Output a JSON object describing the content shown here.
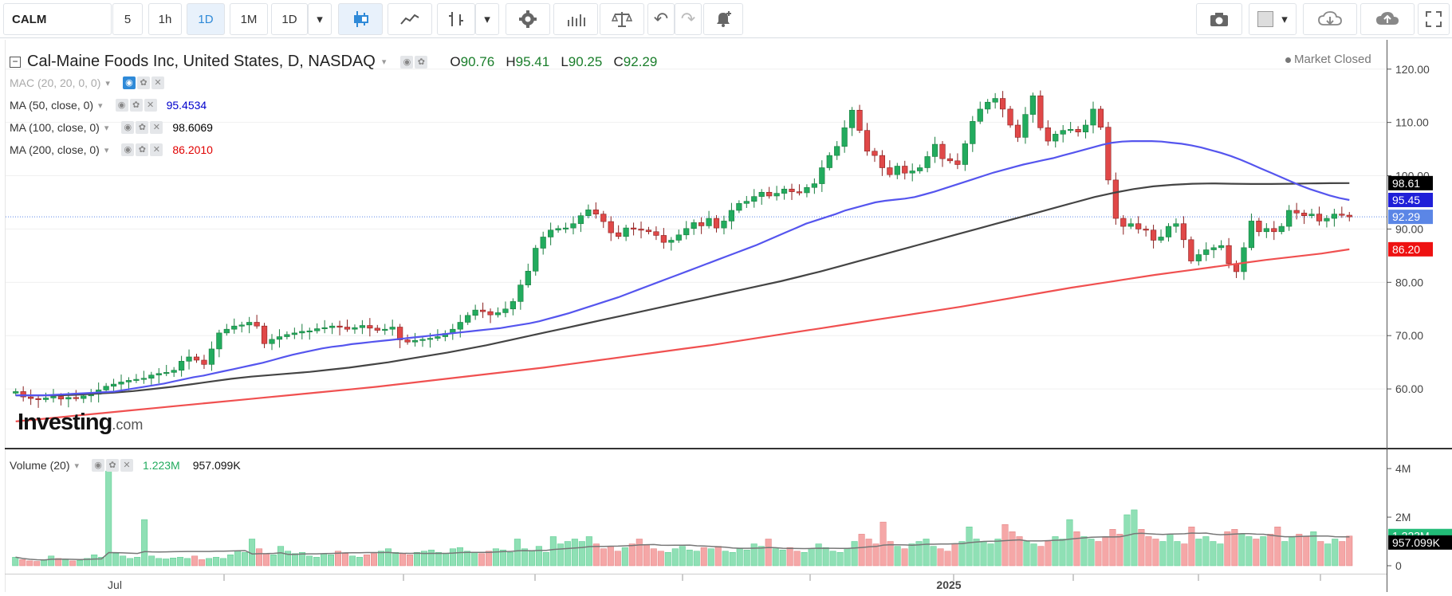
{
  "toolbar": {
    "symbol": "CALM",
    "intervals": [
      "5",
      "1h",
      "1D",
      "1M",
      "1D"
    ],
    "active_interval_index": 2
  },
  "legend": {
    "title": "Cal-Maine Foods Inc, United States, D, NASDAQ",
    "open_label": "O",
    "open": "90.76",
    "high_label": "H",
    "high": "95.41",
    "low_label": "L",
    "low": "90.25",
    "close_label": "C",
    "close": "92.29"
  },
  "indicators": [
    {
      "label": "MAC (20, 20, 0, 0)",
      "value": "",
      "color": "#aaaaaa",
      "muted": true
    },
    {
      "label": "MA (50, close, 0)",
      "value": "95.4534",
      "color": "#0000cc",
      "muted": false
    },
    {
      "label": "MA (100, close, 0)",
      "value": "98.6069",
      "color": "#000000",
      "muted": false
    },
    {
      "label": "MA (200, close, 0)",
      "value": "86.2010",
      "color": "#e00000",
      "muted": false
    }
  ],
  "market_status": "Market Closed",
  "watermark": {
    "brand": "Investing",
    "suffix": ".com"
  },
  "volume": {
    "label": "Volume (20)",
    "value1": "1.223M",
    "value2": "957.099K"
  },
  "price_axis": {
    "ticks": [
      "120.00",
      "110.00",
      "100.00",
      "90.00",
      "80.00",
      "70.00",
      "60.00"
    ],
    "badges": [
      {
        "text": "98.61",
        "bg": "#000000",
        "fg": "#ffffff"
      },
      {
        "text": "95.45",
        "bg": "#1f1fd8",
        "fg": "#ffffff"
      },
      {
        "text": "92.29",
        "bg": "#5b86e6",
        "fg": "#ffffff"
      },
      {
        "text": "86.20",
        "bg": "#ee1111",
        "fg": "#ffffff"
      }
    ]
  },
  "volume_axis": {
    "ticks": [
      "4M",
      "2M",
      "0"
    ],
    "badges": [
      {
        "text": "1.223M",
        "bg": "#22bb77",
        "fg": "#ffffff"
      },
      {
        "text": "957.099K",
        "bg": "#000000",
        "fg": "#ffffff"
      }
    ]
  },
  "time_axis": {
    "labels": [
      "Jul",
      "2025"
    ]
  },
  "colors": {
    "up": "#22ab5e",
    "down": "#e04848",
    "ma50": "#5555ee",
    "ma100": "#444444",
    "ma200": "#f05050",
    "vol_up": "#8fe0b5",
    "vol_down": "#f5a7a7"
  },
  "chart_data": {
    "type": "candlestick",
    "ylim": [
      50,
      124
    ],
    "prices": [
      59.5,
      58.5,
      58.2,
      58.0,
      58.3,
      58.6,
      58.1,
      58.4,
      58.2,
      58.7,
      59.0,
      59.8,
      60.5,
      60.9,
      61.3,
      61.6,
      61.8,
      62.0,
      62.6,
      62.9,
      63.1,
      63.5,
      65.2,
      66.0,
      65.4,
      64.6,
      67.5,
      70.5,
      71.2,
      71.8,
      72.0,
      72.5,
      71.8,
      68.5,
      69.3,
      69.8,
      70.2,
      70.5,
      70.8,
      70.9,
      71.3,
      71.5,
      71.8,
      71.6,
      71.2,
      71.5,
      71.9,
      71.4,
      71.0,
      71.2,
      71.6,
      69.2,
      68.8,
      69.1,
      69.3,
      69.5,
      69.8,
      70.4,
      71.2,
      72.5,
      73.8,
      74.8,
      74.5,
      73.9,
      74.3,
      75.0,
      76.4,
      79.5,
      82.1,
      86.4,
      88.5,
      89.8,
      90.1,
      90.2,
      91.0,
      92.5,
      93.6,
      92.8,
      91.4,
      89.3,
      88.6,
      90.2,
      90.0,
      89.8,
      89.5,
      88.8,
      87.5,
      87.9,
      88.9,
      90.1,
      91.2,
      90.6,
      92.0,
      90.2,
      91.5,
      93.5,
      94.8,
      95.2,
      96.1,
      96.9,
      96.2,
      96.7,
      97.5,
      97.0,
      96.8,
      97.8,
      98.5,
      101.5,
      103.8,
      105.5,
      109.0,
      112.3,
      108.5,
      104.6,
      103.8,
      101.5,
      100.2,
      101.8,
      100.5,
      100.9,
      101.5,
      103.6,
      105.9,
      103.2,
      102.8,
      102.1,
      106.0,
      110.2,
      112.5,
      113.8,
      114.5,
      112.5,
      109.5,
      107.2,
      111.5,
      115.0,
      109.0,
      106.5,
      107.8,
      108.5,
      108.7,
      108.2,
      109.5,
      112.5,
      109.1,
      99.2,
      92.0,
      90.5,
      91.0,
      90.0,
      89.8,
      87.9,
      88.5,
      90.5,
      91.0,
      88.0,
      84.0,
      85.2,
      86.1,
      86.5,
      86.9,
      83.5,
      82.0,
      86.5,
      91.5,
      89.5,
      90.1,
      89.5,
      90.5,
      93.5,
      93.0,
      92.5,
      92.8,
      91.5,
      92.0,
      92.8,
      92.6,
      92.29
    ],
    "ma50": [
      58.8,
      58.8,
      58.8,
      58.8,
      58.9,
      59.0,
      59.1,
      59.2,
      59.3,
      59.4,
      59.5,
      59.8,
      60.1,
      60.4,
      60.7,
      61.0,
      61.4,
      61.8,
      62.2,
      62.5,
      62.9,
      63.3,
      63.7,
      64.1,
      64.5,
      64.9,
      65.4,
      65.9,
      66.4,
      66.8,
      67.2,
      67.6,
      67.9,
      68.1,
      68.4,
      68.6,
      68.8,
      69.0,
      69.2,
      69.4,
      69.6,
      69.8,
      70.0,
      70.2,
      70.4,
      70.6,
      70.8,
      71.0,
      71.2,
      71.4,
      71.7,
      72.0,
      72.3,
      72.7,
      73.2,
      73.7,
      74.2,
      74.8,
      75.4,
      76.0,
      76.6,
      77.2,
      77.9,
      78.6,
      79.3,
      80.0,
      80.7,
      81.4,
      82.1,
      82.8,
      83.5,
      84.2,
      84.9,
      85.6,
      86.3,
      87.0,
      87.8,
      88.6,
      89.4,
      90.2,
      91.0,
      91.6,
      92.2,
      92.8,
      93.5,
      94.0,
      94.5,
      95.0,
      95.3,
      95.5,
      95.7,
      96.0,
      96.5,
      97.0,
      97.6,
      98.2,
      98.8,
      99.4,
      100.0,
      100.6,
      101.1,
      101.6,
      102.1,
      102.5,
      102.9,
      103.3,
      103.8,
      104.3,
      104.8,
      105.3,
      105.8,
      106.2,
      106.4,
      106.5,
      106.5,
      106.5,
      106.4,
      106.2,
      106.0,
      105.7,
      105.3,
      104.8,
      104.3,
      103.7,
      103.0,
      102.2,
      101.4,
      100.6,
      99.8,
      99.0,
      98.2,
      97.5,
      96.9,
      96.3,
      95.8,
      95.45
    ],
    "ma100": [
      58.8,
      58.8,
      58.8,
      58.9,
      59.1,
      59.3,
      59.6,
      60.0,
      60.4,
      60.9,
      61.4,
      61.9,
      62.3,
      62.6,
      62.9,
      63.2,
      63.6,
      64.0,
      64.5,
      65.0,
      65.6,
      66.2,
      66.8,
      67.5,
      68.2,
      69.0,
      69.8,
      70.6,
      71.4,
      72.2,
      73.0,
      73.8,
      74.6,
      75.4,
      76.2,
      77.0,
      77.8,
      78.6,
      79.4,
      80.2,
      81.1,
      82.0,
      83.0,
      84.0,
      85.0,
      86.0,
      87.0,
      88.0,
      89.0,
      90.0,
      91.0,
      92.0,
      93.0,
      94.0,
      95.0,
      96.0,
      96.8,
      97.5,
      98.0,
      98.3,
      98.5,
      98.55,
      98.5,
      98.45,
      98.45,
      98.5,
      98.55,
      98.6,
      98.61
    ],
    "ma200": [
      53.9,
      54.4,
      54.9,
      55.4,
      55.9,
      56.4,
      56.9,
      57.4,
      57.9,
      58.4,
      58.9,
      59.4,
      59.9,
      60.4,
      61.0,
      61.6,
      62.2,
      62.8,
      63.4,
      64.0,
      64.7,
      65.4,
      66.1,
      66.8,
      67.5,
      68.2,
      69.0,
      69.8,
      70.6,
      71.4,
      72.2,
      73.0,
      73.8,
      74.6,
      75.4,
      76.3,
      77.2,
      78.1,
      79.0,
      79.8,
      80.6,
      81.4,
      82.1,
      82.8,
      83.5,
      84.2,
      84.8,
      85.4,
      86.2
    ],
    "volume_m": [
      0.35,
      0.25,
      0.2,
      0.18,
      0.22,
      0.4,
      0.3,
      0.25,
      0.2,
      0.22,
      0.3,
      0.45,
      0.35,
      3.9,
      0.5,
      0.4,
      0.3,
      0.35,
      1.9,
      0.4,
      0.3,
      0.28,
      0.32,
      0.35,
      0.3,
      0.4,
      0.25,
      0.3,
      0.35,
      0.3,
      0.45,
      0.6,
      0.55,
      1.1,
      0.7,
      0.5,
      0.45,
      0.8,
      0.6,
      0.5,
      0.55,
      0.4,
      0.35,
      0.5,
      0.45,
      0.6,
      0.5,
      0.4,
      0.35,
      0.45,
      0.5,
      0.6,
      0.7,
      0.55,
      0.5,
      0.45,
      0.55,
      0.6,
      0.65,
      0.55,
      0.5,
      0.7,
      0.75,
      0.6,
      0.55,
      0.5,
      0.6,
      0.7,
      0.65,
      0.55,
      1.1,
      0.7,
      0.6,
      0.8,
      0.55,
      1.2,
      0.9,
      1.0,
      1.1,
      1.0,
      1.2,
      0.9,
      0.7,
      0.8,
      0.6,
      0.75,
      0.9,
      1.1,
      0.85,
      0.7,
      0.6,
      0.55,
      0.7,
      0.8,
      0.65,
      0.6,
      0.75,
      0.7,
      0.8,
      0.6,
      0.55,
      0.7,
      0.65,
      0.9,
      0.8,
      1.1,
      0.7,
      0.65,
      0.75,
      0.6,
      0.55,
      0.7,
      0.9,
      0.75,
      0.6,
      0.55,
      0.7,
      1.0,
      1.3,
      1.1,
      0.9,
      1.8,
      1.0,
      0.8,
      0.7,
      0.9,
      1.0,
      1.1,
      0.8,
      0.7,
      0.6,
      0.9,
      1.0,
      1.6,
      1.1,
      1.0,
      0.9,
      1.1,
      1.7,
      1.4,
      1.2,
      1.0,
      0.9,
      0.8,
      1.0,
      1.2,
      1.1,
      1.9,
      1.4,
      1.2,
      1.1,
      1.0,
      1.2,
      1.5,
      1.3,
      2.1,
      2.3,
      1.5,
      1.2,
      1.1,
      1.0,
      1.3,
      1.0,
      0.9,
      1.6,
      1.1,
      1.2,
      1.0,
      0.9,
      1.4,
      1.5,
      1.3,
      1.2,
      1.1,
      1.2,
      1.3,
      1.6,
      1.0,
      1.2,
      1.3,
      1.2,
      1.4,
      1.0,
      0.9,
      1.1,
      1.0,
      1.223
    ],
    "volume_ylim": [
      0,
      4.2
    ]
  }
}
